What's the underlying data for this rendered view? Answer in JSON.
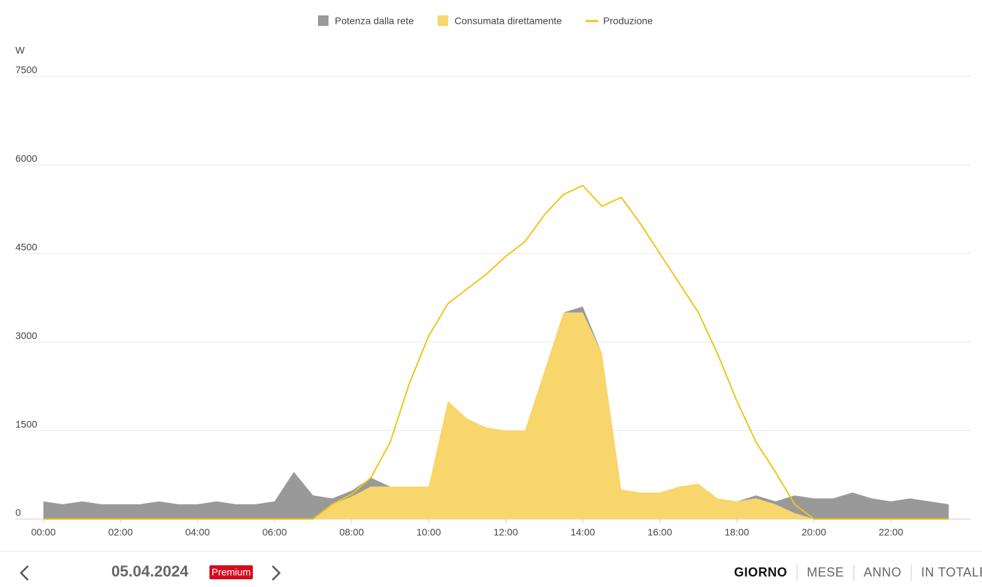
{
  "chart_data": {
    "type": "area",
    "y_label": "W",
    "x": [
      "00:00",
      "00:30",
      "01:00",
      "01:30",
      "02:00",
      "02:30",
      "03:00",
      "03:30",
      "04:00",
      "04:30",
      "05:00",
      "05:30",
      "06:00",
      "06:30",
      "07:00",
      "07:30",
      "08:00",
      "08:30",
      "09:00",
      "09:30",
      "10:00",
      "10:30",
      "11:00",
      "11:30",
      "12:00",
      "12:30",
      "13:00",
      "13:30",
      "14:00",
      "14:30",
      "15:00",
      "15:30",
      "16:00",
      "16:30",
      "17:00",
      "17:30",
      "18:00",
      "18:30",
      "19:00",
      "19:30",
      "20:00",
      "20:30",
      "21:00",
      "21:30",
      "22:00",
      "22:30",
      "23:00",
      "23:30"
    ],
    "series": [
      {
        "name": "Potenza dalla rete",
        "color": "#999999",
        "kind": "area",
        "stack": "consumo",
        "values": [
          300,
          250,
          300,
          250,
          250,
          250,
          300,
          250,
          250,
          300,
          250,
          250,
          300,
          800,
          400,
          100,
          100,
          150,
          0,
          0,
          0,
          0,
          0,
          0,
          0,
          0,
          0,
          0,
          100,
          0,
          0,
          0,
          0,
          0,
          0,
          0,
          0,
          50,
          50,
          300,
          350,
          350,
          450,
          350,
          300,
          350,
          300,
          250
        ]
      },
      {
        "name": "Consumata direttamente",
        "color": "#f9d66b",
        "kind": "area",
        "stack": "consumo",
        "values": [
          0,
          0,
          0,
          0,
          0,
          0,
          0,
          0,
          0,
          0,
          0,
          0,
          0,
          0,
          0,
          250,
          380,
          550,
          550,
          550,
          550,
          2000,
          1700,
          1550,
          1500,
          1500,
          2500,
          3500,
          3500,
          2800,
          500,
          450,
          450,
          550,
          600,
          350,
          300,
          350,
          250,
          100,
          0,
          0,
          0,
          0,
          0,
          0,
          0,
          0
        ]
      },
      {
        "name": "Produzione",
        "color": "#f0c419",
        "kind": "line",
        "values": [
          0,
          0,
          0,
          0,
          0,
          0,
          0,
          0,
          0,
          0,
          0,
          0,
          0,
          0,
          0,
          250,
          420,
          700,
          1300,
          2300,
          3100,
          3650,
          3900,
          4150,
          4450,
          4700,
          5150,
          5500,
          5650,
          5300,
          5450,
          5000,
          4500,
          4000,
          3500,
          2800,
          2000,
          1300,
          800,
          250,
          0,
          0,
          0,
          0,
          0,
          0,
          0,
          0
        ]
      }
    ],
    "ylim": [
      0,
      7500
    ],
    "yticks": [
      0,
      1500,
      3000,
      4500,
      6000,
      7500
    ],
    "xticks": [
      "00:00",
      "02:00",
      "04:00",
      "06:00",
      "08:00",
      "10:00",
      "12:00",
      "14:00",
      "16:00",
      "18:00",
      "20:00",
      "22:00"
    ],
    "grid": true
  },
  "footer": {
    "date": "05.04.2024",
    "badge": "Premium",
    "tabs": [
      "GIORNO",
      "MESE",
      "ANNO",
      "IN TOTALE"
    ],
    "active_tab": 0
  }
}
